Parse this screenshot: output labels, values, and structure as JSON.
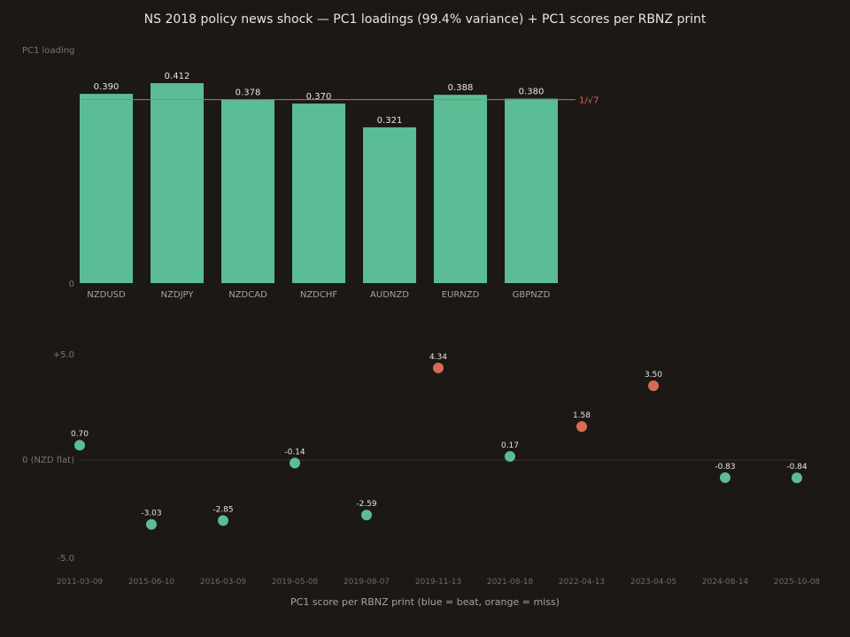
{
  "title": "NS 2018 policy news shock — PC1 loadings (99.4% variance) + PC1 scores per RBNZ print",
  "colors": {
    "background": "#1c1816",
    "bar": "#5bbd95",
    "beat": "#5bbd95",
    "miss": "#d96a55",
    "reference_line": "#d96a55",
    "zero_line": "#3a3531"
  },
  "chart_data": [
    {
      "type": "bar",
      "ylabel": "PC1 loading",
      "y_tick_labels": [
        "0"
      ],
      "ylim": [
        0,
        0.42
      ],
      "categories": [
        "NZDUSD",
        "NZDJPY",
        "NZDCAD",
        "NZDCHF",
        "AUDNZD",
        "EURNZD",
        "GBPNZD"
      ],
      "values": [
        0.39,
        0.412,
        0.378,
        0.37,
        0.321,
        0.388,
        0.38
      ],
      "value_labels": [
        "0.390",
        "0.412",
        "0.378",
        "0.370",
        "0.321",
        "0.388",
        "0.380"
      ],
      "reference_line": {
        "value": 0.378,
        "label": "1/√7"
      }
    },
    {
      "type": "scatter",
      "xlabel": "PC1 score per RBNZ print (blue = beat, orange = miss)",
      "y_tick_labels": [
        {
          "value": 5,
          "label": "+5.0"
        },
        {
          "value": 0,
          "label": "0 (NZD flat)"
        },
        {
          "value": -5,
          "label": "-5.0"
        }
      ],
      "ylim": [
        -5.5,
        5.5
      ],
      "x": [
        "2011-03-09",
        "2015-06-10",
        "2016-03-09",
        "2019-05-08",
        "2019-08-07",
        "2019-11-13",
        "2021-08-18",
        "2022-04-13",
        "2023-04-05",
        "2024-08-14",
        "2025-10-08"
      ],
      "y": [
        0.7,
        -3.03,
        -2.85,
        -0.14,
        -2.59,
        4.34,
        0.17,
        1.58,
        3.5,
        -0.83,
        -0.84
      ],
      "value_labels": [
        "0.70",
        "-3.03",
        "-2.85",
        "-0.14",
        "-2.59",
        "4.34",
        "0.17",
        "1.58",
        "3.50",
        "-0.83",
        "-0.84"
      ],
      "outcome": [
        "beat",
        "beat",
        "beat",
        "beat",
        "beat",
        "miss",
        "beat",
        "miss",
        "miss",
        "beat",
        "beat"
      ]
    }
  ]
}
